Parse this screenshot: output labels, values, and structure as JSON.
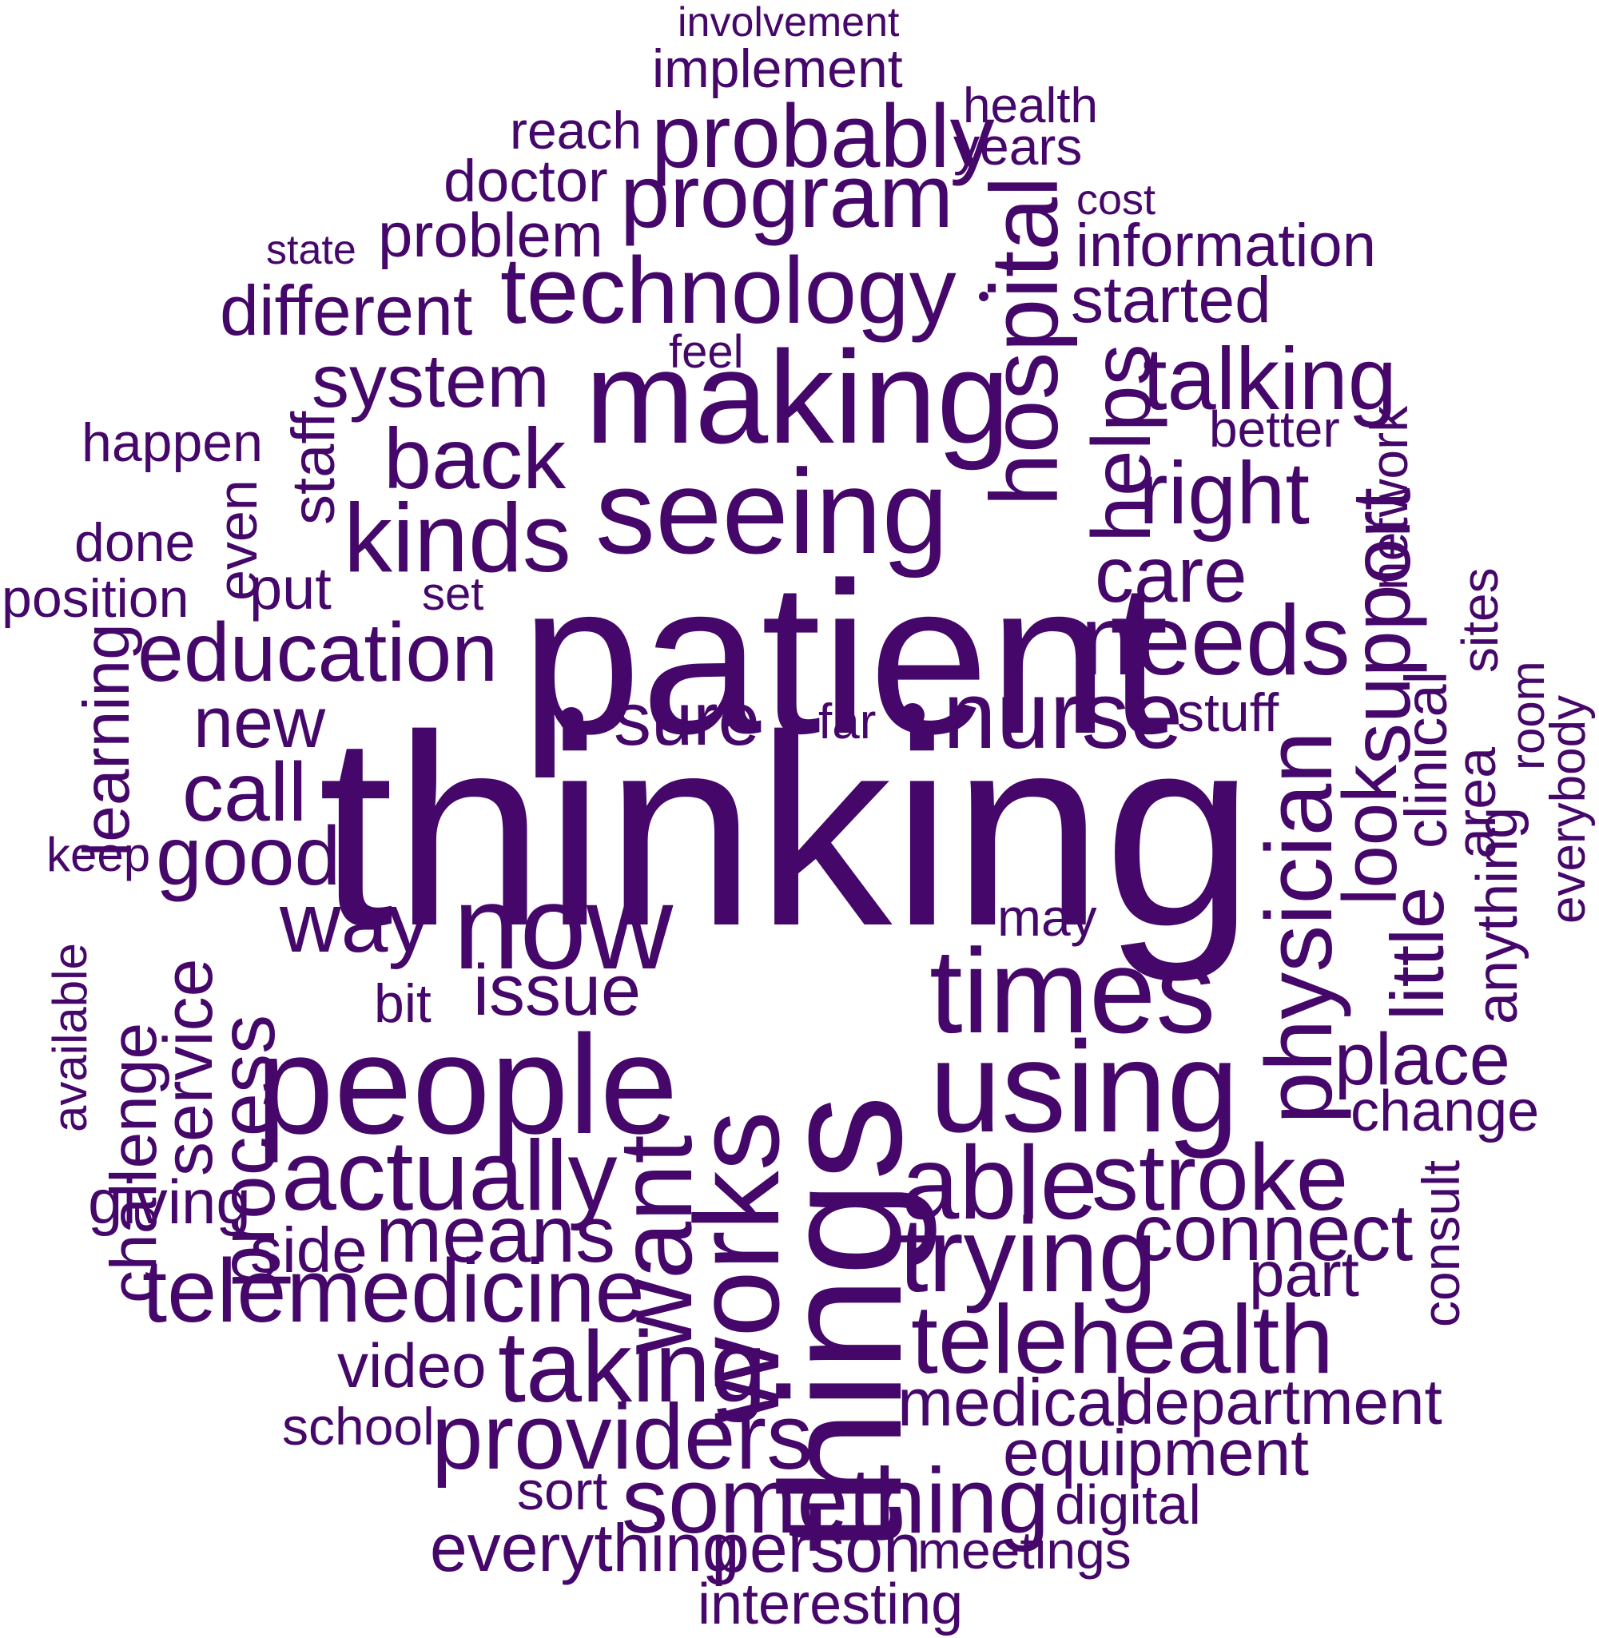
{
  "cloud": {
    "color": "#45076a",
    "background": "#ffffff",
    "words": [
      "involvement",
      "implement",
      "health",
      "reach",
      "probably",
      "years",
      "doctor",
      "program",
      "cost",
      "state",
      "problem",
      "information",
      "different",
      "technology",
      "started",
      "hospital",
      "feel",
      "system",
      "making",
      "helps",
      "talking",
      "happen",
      "better",
      "network",
      "back",
      "staff",
      "seeing",
      "right",
      "done",
      "kinds",
      "even",
      "position",
      "put",
      "set",
      "care",
      "patient",
      "support",
      "education",
      "needs",
      "sites",
      "learning",
      "new",
      "sure",
      "far",
      "nurse",
      "stuff",
      "room",
      "anything",
      "everybody",
      "clinical",
      "area",
      "look",
      "physician",
      "call",
      "thinking",
      "keep",
      "good",
      "way",
      "now",
      "may",
      "little",
      "available",
      "challenge",
      "service",
      "process",
      "works",
      "things",
      "bit",
      "issue",
      "times",
      "people",
      "using",
      "place",
      "want",
      "change",
      "actually",
      "able",
      "stroke",
      "giving",
      "means",
      "side",
      "connect",
      "consult",
      "telemedicine",
      "trying",
      "part",
      "telehealth",
      "taking",
      "video",
      "medical",
      "department",
      "school",
      "providers",
      "equipment",
      "sort",
      "something",
      "digital",
      "everything",
      "person",
      "meetings",
      "interesting"
    ]
  }
}
